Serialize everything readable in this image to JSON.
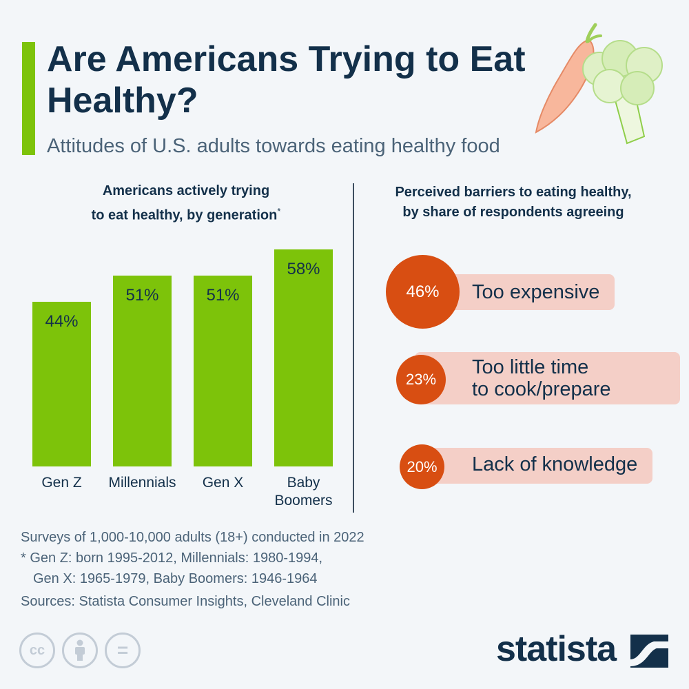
{
  "header": {
    "title": "Are Americans Trying to Eat Healthy?",
    "subtitle": "Attitudes of U.S. adults towards eating healthy food"
  },
  "left_panel": {
    "title_line1": "Americans actively trying",
    "title_line2": "to eat healthy, by generation",
    "title_mark": "*"
  },
  "right_panel": {
    "title_line1": "Perceived barriers to eating healthy,",
    "title_line2": "by share of respondents agreeing"
  },
  "chart_data": [
    {
      "type": "bar",
      "title": "Americans actively trying to eat healthy, by generation*",
      "categories": [
        "Gen Z",
        "Millennials",
        "Gen X",
        "Baby Boomers"
      ],
      "category_lines": [
        [
          "Gen Z"
        ],
        [
          "Millennials"
        ],
        [
          "Gen X"
        ],
        [
          "Baby",
          "Boomers"
        ]
      ],
      "values": [
        44,
        51,
        51,
        58
      ],
      "value_labels": [
        "44%",
        "51%",
        "51%",
        "58%"
      ],
      "unit": "%",
      "ylim": [
        0,
        58
      ],
      "grid": false,
      "color": "#7dc30a"
    },
    {
      "type": "bar",
      "title": "Perceived barriers to eating healthy, by share of respondents agreeing",
      "categories": [
        "Too expensive",
        "Too little time to cook/prepare",
        "Lack of knowledge"
      ],
      "values": [
        46,
        23,
        20
      ],
      "unit": "%",
      "items": [
        {
          "value_label": "46%",
          "line1": "Too expensive",
          "line2": ""
        },
        {
          "value_label": "23%",
          "line1": "Too little time",
          "line2": "to cook/prepare"
        },
        {
          "value_label": "20%",
          "line1": "Lack of knowledge",
          "line2": ""
        }
      ],
      "circle_color": "#d84e12",
      "pill_color": "#f4cfc7"
    }
  ],
  "notes": {
    "survey": "Surveys of 1,000-10,000 adults (18+) conducted in 2022",
    "footnote_line1": "* Gen Z: born 1995-2012, Millennials: 1980-1994,",
    "footnote_line2": "Gen X: 1965-1979, Baby Boomers: 1946-1964",
    "sources": "Sources: Statista Consumer Insights, Cleveland Clinic"
  },
  "license": {
    "icons": [
      "cc-icon",
      "attribution-icon",
      "no-derivatives-icon"
    ],
    "cc_text": "cc",
    "nd_text": "="
  },
  "brand": {
    "logo_text": "statista",
    "colors": {
      "navy": "#13304a",
      "green": "#7dc30a",
      "orange": "#d84e12",
      "pink": "#f4cfc7"
    }
  }
}
